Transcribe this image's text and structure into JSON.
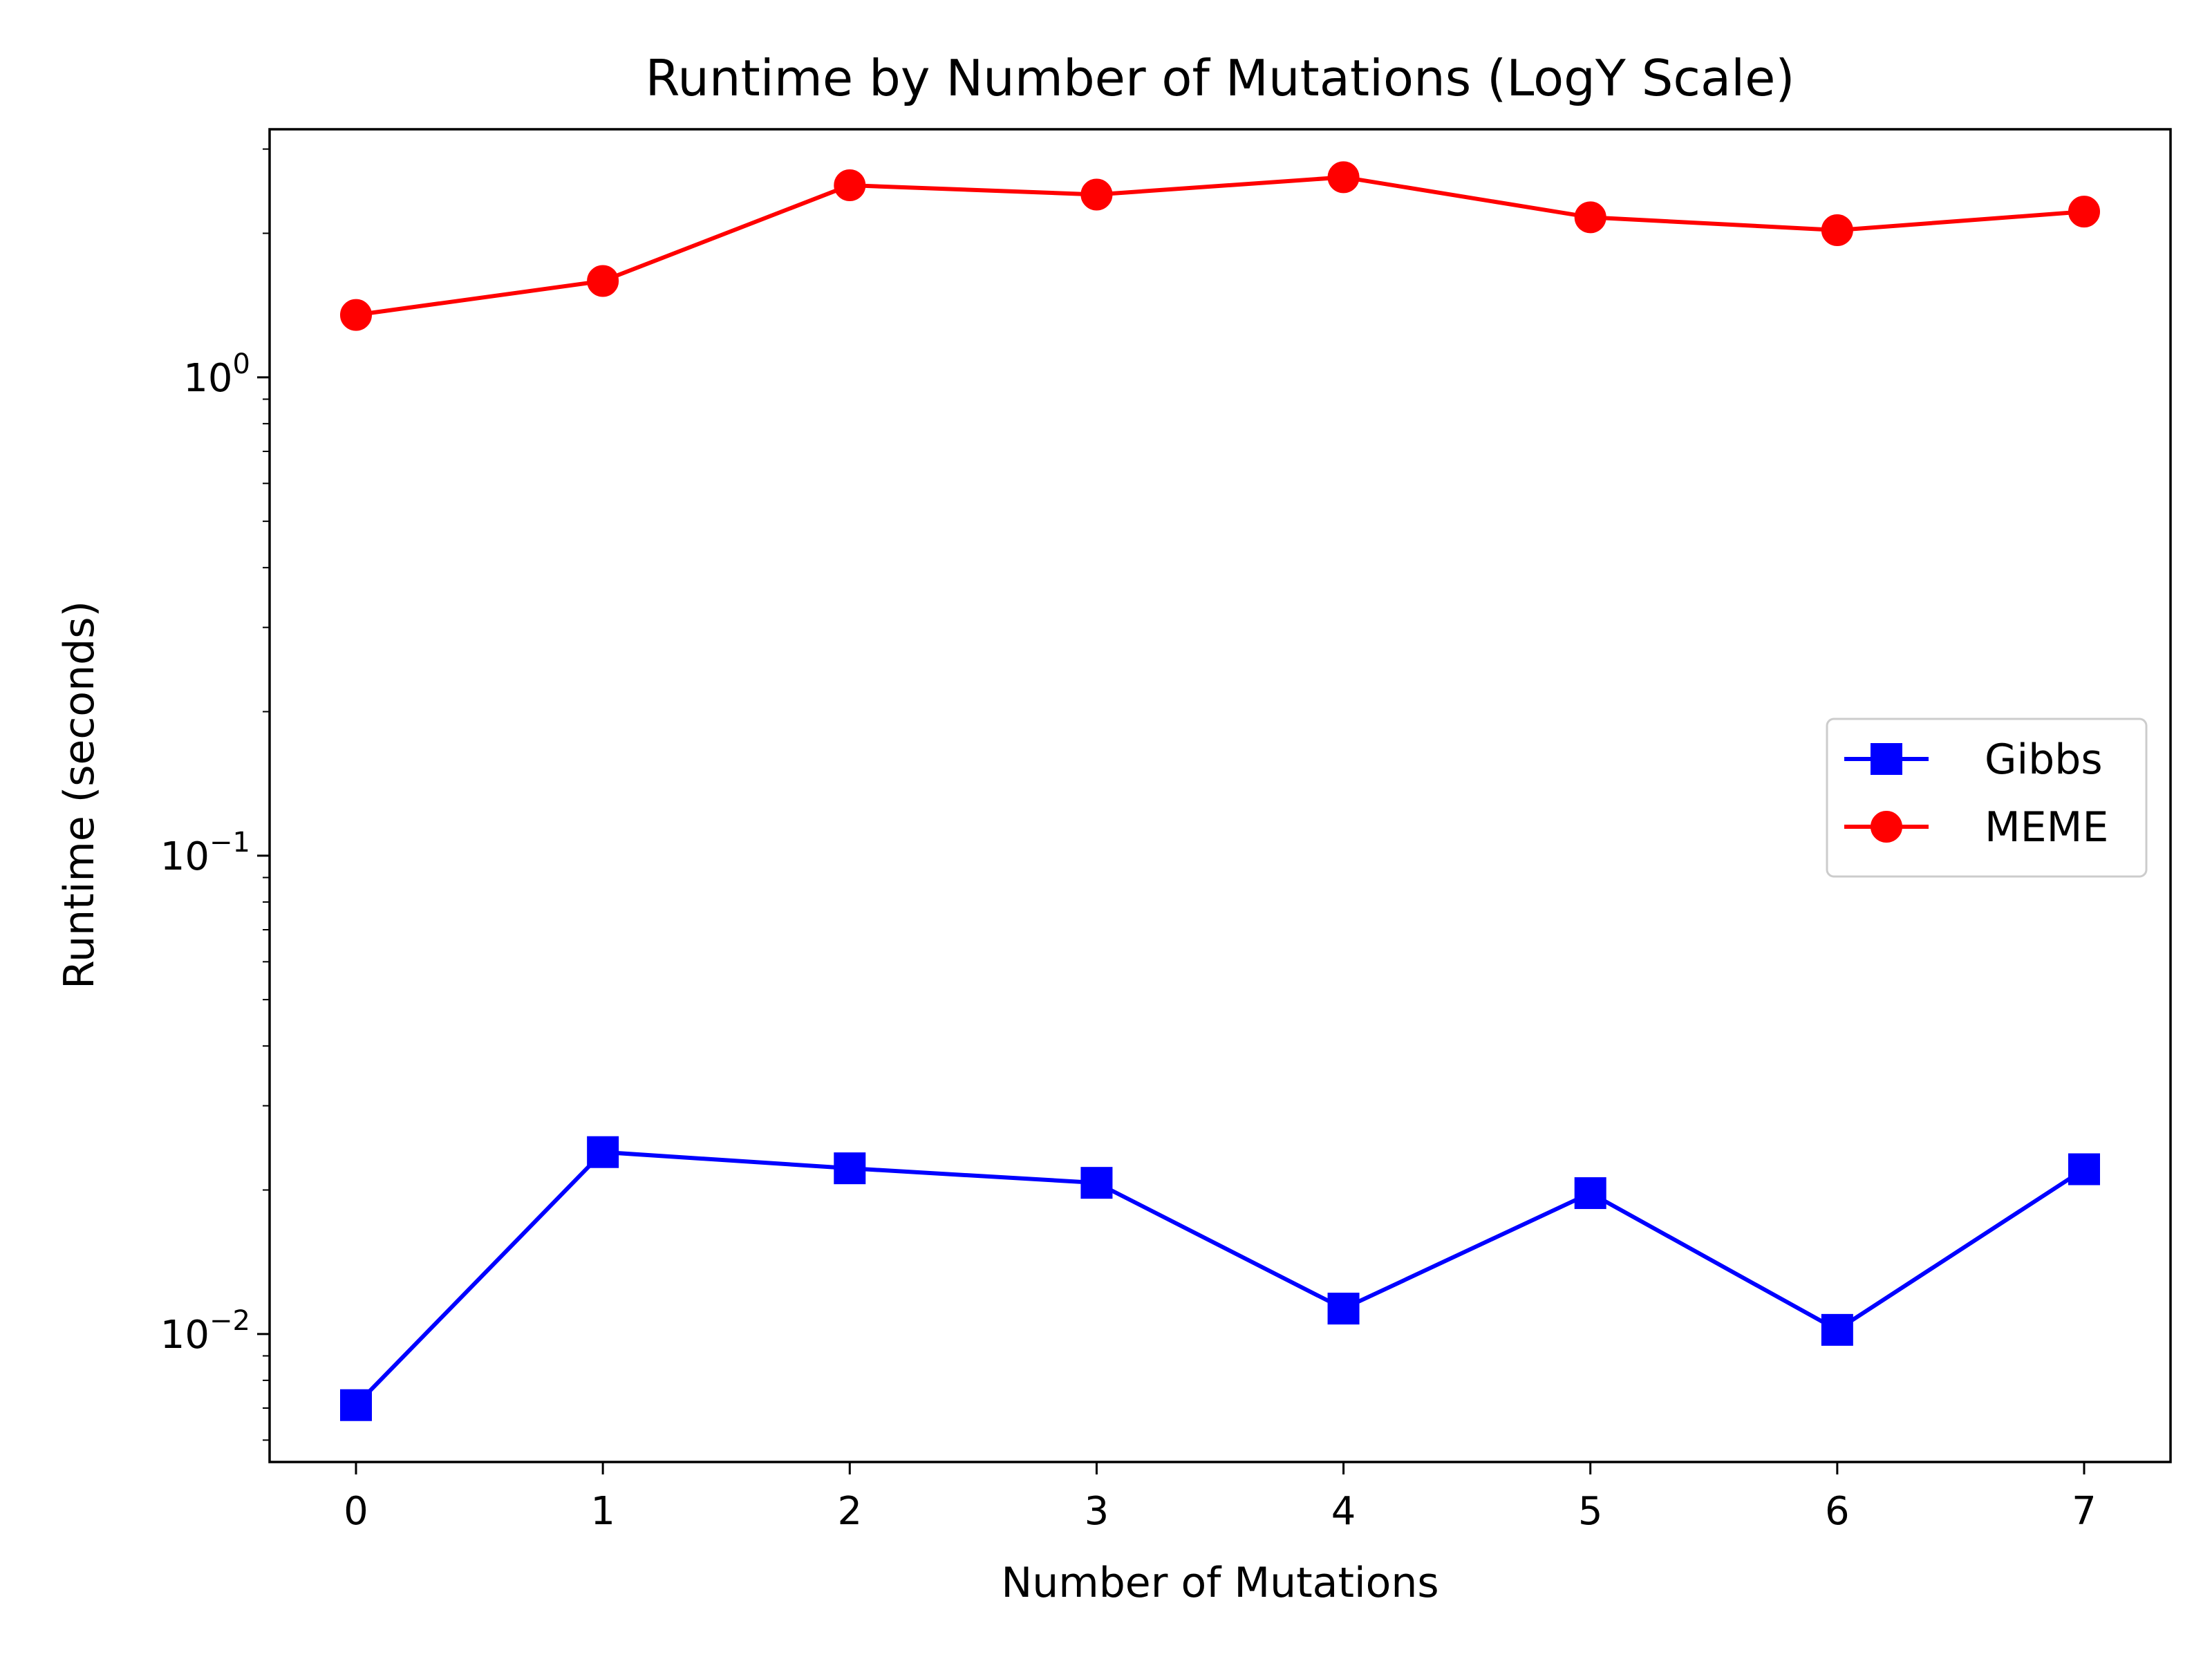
{
  "chart_data": {
    "type": "line",
    "title": "Runtime by Number of Mutations (LogY Scale)",
    "xlabel": "Number of Mutations",
    "ylabel": "Runtime (seconds)",
    "yscale": "log",
    "x": [
      0,
      1,
      2,
      3,
      4,
      5,
      6,
      7
    ],
    "xlim": [
      -0.35,
      7.35
    ],
    "ylim": [
      0.0054,
      3.3
    ],
    "x_ticks": [
      "0",
      "1",
      "2",
      "3",
      "4",
      "5",
      "6",
      "7"
    ],
    "y_ticks": [
      {
        "value": 0.01,
        "base": "10",
        "exp": "−2"
      },
      {
        "value": 0.1,
        "base": "10",
        "exp": "−1"
      },
      {
        "value": 1,
        "base": "10",
        "exp": "0"
      }
    ],
    "grid": false,
    "legend_position": "center-right",
    "series": [
      {
        "name": "Gibbs",
        "color": "#0000ff",
        "marker": "square",
        "values": [
          0.0071,
          0.024,
          0.0222,
          0.0207,
          0.0113,
          0.0197,
          0.0102,
          0.0221
        ]
      },
      {
        "name": "MEME",
        "color": "#ff0000",
        "marker": "circle",
        "values": [
          1.35,
          1.59,
          2.52,
          2.41,
          2.62,
          2.16,
          2.03,
          2.22
        ]
      }
    ]
  }
}
